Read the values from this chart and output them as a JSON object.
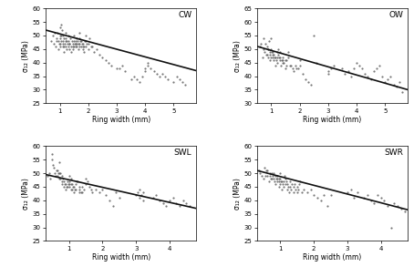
{
  "panels": [
    {
      "label": "CW",
      "xlim": [
        0.5,
        5.8
      ],
      "ylim": [
        25,
        60
      ],
      "yticks": [
        25,
        30,
        35,
        40,
        45,
        50,
        55,
        60
      ],
      "xticks": [
        1,
        2,
        3,
        4,
        5
      ],
      "line_x": [
        0.5,
        5.8
      ],
      "line_y": [
        52.0,
        37.0
      ],
      "scatter_x": [
        0.7,
        0.75,
        0.8,
        0.82,
        0.85,
        0.88,
        0.9,
        0.92,
        0.95,
        0.95,
        0.97,
        1.0,
        1.0,
        1.0,
        1.02,
        1.02,
        1.05,
        1.05,
        1.05,
        1.07,
        1.1,
        1.1,
        1.1,
        1.12,
        1.15,
        1.15,
        1.15,
        1.17,
        1.2,
        1.2,
        1.2,
        1.22,
        1.25,
        1.25,
        1.27,
        1.3,
        1.3,
        1.3,
        1.32,
        1.35,
        1.35,
        1.38,
        1.4,
        1.4,
        1.42,
        1.45,
        1.45,
        1.47,
        1.5,
        1.5,
        1.5,
        1.52,
        1.55,
        1.55,
        1.57,
        1.6,
        1.6,
        1.6,
        1.62,
        1.65,
        1.65,
        1.68,
        1.7,
        1.7,
        1.7,
        1.72,
        1.75,
        1.75,
        1.78,
        1.8,
        1.8,
        1.82,
        1.85,
        1.85,
        1.88,
        1.9,
        1.9,
        1.92,
        1.95,
        2.0,
        2.0,
        2.05,
        2.1,
        2.15,
        2.2,
        2.3,
        2.4,
        2.5,
        2.6,
        2.7,
        2.8,
        3.0,
        3.1,
        3.2,
        3.3,
        3.5,
        3.6,
        3.7,
        3.8,
        3.9,
        4.0,
        4.0,
        4.1,
        4.1,
        4.2,
        4.3,
        4.4,
        4.5,
        4.6,
        4.7,
        4.8,
        5.0,
        5.1,
        5.2,
        5.3,
        5.4
      ],
      "scatter_y": [
        48,
        50,
        47,
        51,
        46,
        49,
        48,
        51,
        45,
        48,
        47,
        47,
        50,
        53,
        46,
        49,
        48,
        50,
        54,
        52,
        46,
        48,
        50,
        47,
        44,
        46,
        49,
        47,
        46,
        48,
        51,
        49,
        45,
        48,
        47,
        46,
        48,
        50,
        47,
        45,
        47,
        49,
        44,
        46,
        48,
        45,
        47,
        46,
        46,
        48,
        50,
        47,
        46,
        48,
        47,
        46,
        47,
        49,
        48,
        45,
        47,
        46,
        47,
        49,
        51,
        48,
        46,
        48,
        47,
        45,
        47,
        46,
        44,
        46,
        48,
        46,
        48,
        50,
        47,
        45,
        47,
        49,
        46,
        46,
        44,
        45,
        43,
        42,
        41,
        40,
        39,
        38,
        38,
        39,
        37,
        34,
        35,
        34,
        33,
        35,
        37,
        38,
        40,
        39,
        38,
        37,
        36,
        35,
        36,
        35,
        34,
        33,
        35,
        34,
        33,
        32
      ]
    },
    {
      "label": "OW",
      "xlim": [
        0.5,
        5.8
      ],
      "ylim": [
        30,
        65
      ],
      "yticks": [
        30,
        35,
        40,
        45,
        50,
        55,
        60,
        65
      ],
      "xticks": [
        1,
        2,
        3,
        4,
        5
      ],
      "line_x": [
        0.5,
        5.8
      ],
      "line_y": [
        51.0,
        35.0
      ],
      "scatter_x": [
        0.6,
        0.65,
        0.7,
        0.72,
        0.75,
        0.78,
        0.8,
        0.82,
        0.85,
        0.85,
        0.88,
        0.9,
        0.9,
        0.92,
        0.95,
        0.95,
        0.97,
        1.0,
        1.0,
        1.0,
        1.02,
        1.05,
        1.05,
        1.07,
        1.1,
        1.1,
        1.12,
        1.15,
        1.15,
        1.17,
        1.2,
        1.2,
        1.22,
        1.25,
        1.25,
        1.27,
        1.3,
        1.3,
        1.32,
        1.35,
        1.38,
        1.4,
        1.4,
        1.42,
        1.45,
        1.5,
        1.5,
        1.52,
        1.55,
        1.6,
        1.6,
        1.65,
        1.7,
        1.75,
        1.8,
        1.85,
        1.9,
        1.95,
        2.0,
        2.0,
        2.1,
        2.2,
        2.3,
        2.4,
        2.5,
        2.6,
        3.0,
        3.0,
        3.1,
        3.2,
        3.5,
        3.6,
        3.7,
        3.8,
        3.9,
        4.0,
        4.1,
        4.2,
        4.3,
        4.4,
        4.5,
        4.6,
        4.7,
        4.8,
        4.9,
        5.0,
        5.1,
        5.2,
        5.3,
        5.4,
        5.5,
        5.6
      ],
      "scatter_y": [
        51,
        52,
        47,
        50,
        54,
        49,
        52,
        48,
        48,
        51,
        50,
        47,
        50,
        53,
        46,
        49,
        48,
        47,
        50,
        54,
        49,
        47,
        49,
        48,
        46,
        48,
        47,
        44,
        47,
        46,
        45,
        47,
        49,
        48,
        50,
        47,
        47,
        49,
        46,
        44,
        46,
        45,
        47,
        46,
        45,
        43,
        46,
        44,
        46,
        47,
        49,
        44,
        44,
        43,
        42,
        44,
        43,
        43,
        44,
        46,
        41,
        39,
        38,
        37,
        55,
        45,
        41,
        42,
        43,
        44,
        43,
        41,
        42,
        40,
        43,
        45,
        44,
        43,
        41,
        40,
        39,
        42,
        43,
        44,
        40,
        38,
        39,
        40,
        37,
        36,
        38,
        34
      ]
    },
    {
      "label": "SWL",
      "xlim": [
        0.3,
        4.8
      ],
      "ylim": [
        25,
        60
      ],
      "yticks": [
        25,
        30,
        35,
        40,
        45,
        50,
        55,
        60
      ],
      "xticks": [
        1,
        2,
        3,
        4
      ],
      "line_x": [
        0.3,
        4.8
      ],
      "line_y": [
        49.5,
        37.0
      ],
      "scatter_x": [
        0.35,
        0.4,
        0.45,
        0.5,
        0.5,
        0.52,
        0.55,
        0.58,
        0.6,
        0.62,
        0.65,
        0.65,
        0.68,
        0.7,
        0.7,
        0.72,
        0.75,
        0.75,
        0.78,
        0.8,
        0.8,
        0.82,
        0.85,
        0.85,
        0.88,
        0.9,
        0.9,
        0.92,
        0.95,
        0.95,
        0.97,
        1.0,
        1.0,
        1.0,
        1.02,
        1.05,
        1.05,
        1.07,
        1.1,
        1.1,
        1.12,
        1.15,
        1.15,
        1.17,
        1.2,
        1.2,
        1.22,
        1.25,
        1.3,
        1.3,
        1.32,
        1.35,
        1.4,
        1.4,
        1.45,
        1.5,
        1.5,
        1.55,
        1.6,
        1.65,
        1.7,
        1.8,
        1.9,
        2.0,
        2.1,
        2.2,
        2.3,
        2.4,
        2.5,
        3.0,
        3.05,
        3.1,
        3.1,
        3.15,
        3.2,
        3.2,
        3.5,
        3.6,
        3.7,
        3.8,
        3.9,
        4.0,
        4.1,
        4.2,
        4.3,
        4.4,
        4.5,
        4.6
      ],
      "scatter_y": [
        49,
        50,
        48,
        55,
        57,
        53,
        52,
        50,
        49,
        51,
        49,
        51,
        50,
        50,
        54,
        48,
        48,
        50,
        47,
        46,
        49,
        48,
        45,
        47,
        46,
        44,
        46,
        45,
        45,
        47,
        46,
        45,
        47,
        49,
        46,
        44,
        46,
        48,
        44,
        46,
        45,
        43,
        45,
        44,
        44,
        46,
        47,
        47,
        43,
        45,
        44,
        43,
        43,
        45,
        44,
        46,
        48,
        47,
        45,
        44,
        43,
        44,
        43,
        44,
        42,
        40,
        38,
        43,
        41,
        42,
        43,
        41,
        44,
        42,
        40,
        43,
        41,
        42,
        40,
        39,
        38,
        40,
        41,
        39,
        38,
        40,
        39,
        38
      ]
    },
    {
      "label": "SWR",
      "xlim": [
        0.3,
        4.8
      ],
      "ylim": [
        25,
        60
      ],
      "yticks": [
        25,
        30,
        35,
        40,
        45,
        50,
        55,
        60
      ],
      "xticks": [
        1,
        2,
        3,
        4
      ],
      "line_x": [
        0.3,
        4.8
      ],
      "line_y": [
        51.0,
        36.5
      ],
      "scatter_x": [
        0.35,
        0.4,
        0.45,
        0.5,
        0.52,
        0.55,
        0.58,
        0.6,
        0.62,
        0.65,
        0.68,
        0.7,
        0.72,
        0.75,
        0.75,
        0.78,
        0.8,
        0.8,
        0.82,
        0.85,
        0.85,
        0.88,
        0.9,
        0.9,
        0.92,
        0.95,
        0.95,
        0.97,
        1.0,
        1.0,
        1.0,
        1.02,
        1.05,
        1.05,
        1.07,
        1.1,
        1.1,
        1.12,
        1.15,
        1.15,
        1.17,
        1.2,
        1.2,
        1.22,
        1.25,
        1.3,
        1.3,
        1.32,
        1.35,
        1.4,
        1.4,
        1.42,
        1.45,
        1.5,
        1.5,
        1.52,
        1.55,
        1.6,
        1.65,
        1.7,
        1.8,
        1.9,
        2.0,
        2.1,
        2.2,
        2.3,
        2.4,
        2.5,
        3.0,
        3.1,
        3.2,
        3.3,
        3.5,
        3.6,
        3.7,
        3.8,
        3.9,
        4.0,
        4.1,
        4.2,
        4.3,
        4.4,
        4.5,
        4.6,
        4.7
      ],
      "scatter_y": [
        51,
        50,
        49,
        48,
        52,
        49,
        51,
        49,
        51,
        47,
        50,
        49,
        48,
        50,
        48,
        49,
        50,
        48,
        47,
        46,
        49,
        48,
        47,
        49,
        48,
        45,
        48,
        47,
        46,
        48,
        50,
        47,
        44,
        47,
        46,
        45,
        47,
        49,
        46,
        48,
        47,
        44,
        46,
        45,
        43,
        45,
        47,
        44,
        46,
        43,
        45,
        46,
        44,
        43,
        45,
        44,
        46,
        47,
        43,
        44,
        43,
        44,
        42,
        41,
        40,
        42,
        38,
        42,
        43,
        44,
        41,
        43,
        41,
        42,
        40,
        39,
        42,
        41,
        40,
        38,
        30,
        39,
        38,
        37,
        36
      ]
    }
  ],
  "ylabel": "σ₁₂ (MPa)",
  "xlabel": "Ring width (mm)",
  "scatter_color": "#606060",
  "line_color": "#111111",
  "scatter_size": 2.5,
  "line_width": 1.2
}
